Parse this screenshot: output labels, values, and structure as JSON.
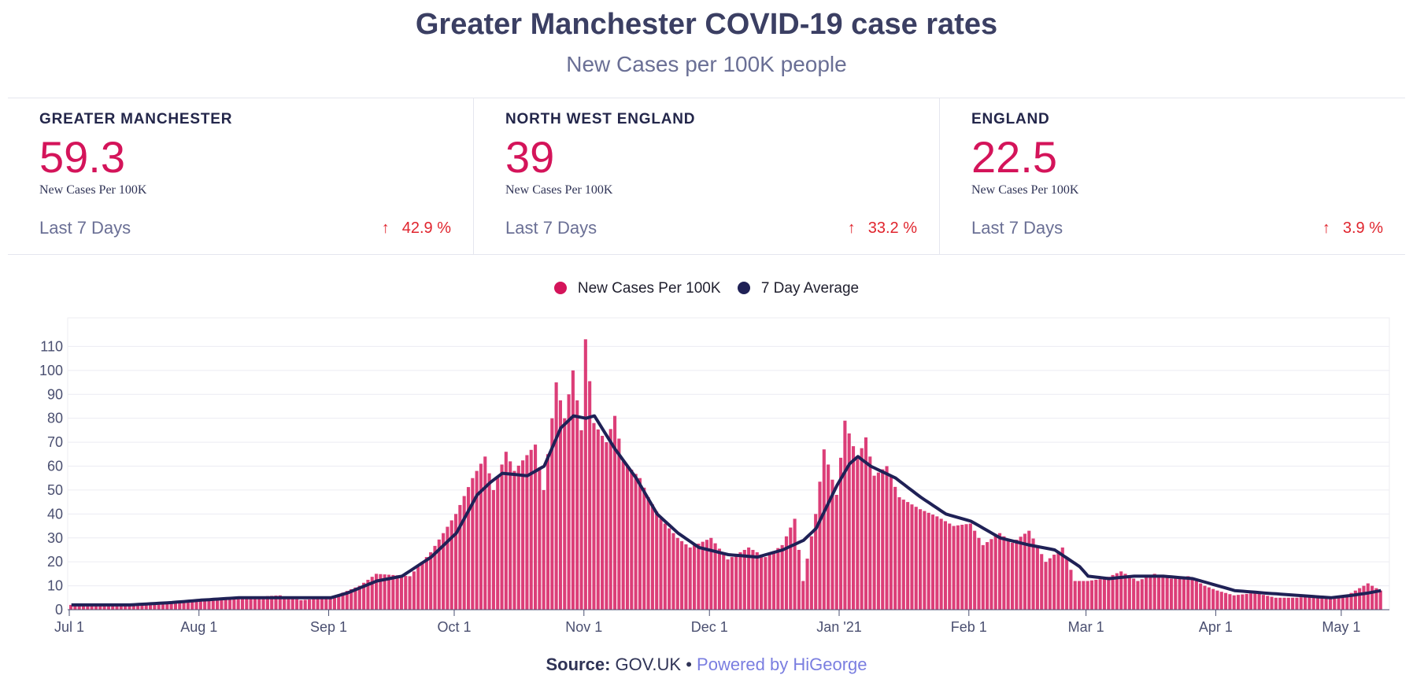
{
  "title": "Greater Manchester COVID-19 case rates",
  "subtitle": "New Cases per 100K people",
  "cards": [
    {
      "region": "GREATER MANCHESTER",
      "value": "59.3",
      "unit": "New Cases Per 100K",
      "period": "Last 7 Days",
      "change": "42.9 %",
      "direction": "up"
    },
    {
      "region": "NORTH WEST ENGLAND",
      "value": "39",
      "unit": "New Cases Per 100K",
      "period": "Last 7 Days",
      "change": "33.2 %",
      "direction": "up"
    },
    {
      "region": "ENGLAND",
      "value": "22.5",
      "unit": "New Cases Per 100K",
      "period": "Last 7 Days",
      "change": "3.9 %",
      "direction": "up"
    }
  ],
  "legend": [
    {
      "label": "New Cases Per 100K",
      "color": "#d4145a"
    },
    {
      "label": "7 Day Average",
      "color": "#1f2156"
    }
  ],
  "footer": {
    "source_label": "Source:",
    "source": "GOV.UK",
    "separator": "•",
    "powered": "Powered by HiGeorge"
  },
  "chart_data": {
    "type": "bar",
    "x_start": "2020-07-01",
    "x_end": "2021-05-10",
    "y_ticks": [
      0,
      10,
      20,
      30,
      40,
      50,
      60,
      70,
      80,
      90,
      100,
      110
    ],
    "ylim": [
      0,
      120
    ],
    "x_ticks": [
      {
        "label": "Jul 1",
        "date": "2020-07-01"
      },
      {
        "label": "Aug 1",
        "date": "2020-08-01"
      },
      {
        "label": "Sep 1",
        "date": "2020-09-01"
      },
      {
        "label": "Oct 1",
        "date": "2020-10-01"
      },
      {
        "label": "Nov 1",
        "date": "2020-11-01"
      },
      {
        "label": "Dec 1",
        "date": "2020-12-01"
      },
      {
        "label": "Jan '21",
        "date": "2021-01-01"
      },
      {
        "label": "Feb 1",
        "date": "2021-02-01"
      },
      {
        "label": "Mar 1",
        "date": "2021-03-01"
      },
      {
        "label": "Apr 1",
        "date": "2021-04-01"
      },
      {
        "label": "May 1",
        "date": "2021-05-01"
      }
    ],
    "bar_color": "#d4145a",
    "line_color": "#1f2156",
    "daily_anchors": [
      [
        "2020-07-01",
        2
      ],
      [
        "2020-07-15",
        2
      ],
      [
        "2020-07-25",
        3
      ],
      [
        "2020-08-01",
        4
      ],
      [
        "2020-08-10",
        5
      ],
      [
        "2020-08-20",
        6
      ],
      [
        "2020-08-25",
        4
      ],
      [
        "2020-09-01",
        5
      ],
      [
        "2020-09-08",
        10
      ],
      [
        "2020-09-12",
        15
      ],
      [
        "2020-09-20",
        14
      ],
      [
        "2020-09-25",
        24
      ],
      [
        "2020-10-01",
        40
      ],
      [
        "2020-10-05",
        55
      ],
      [
        "2020-10-08",
        64
      ],
      [
        "2020-10-10",
        50
      ],
      [
        "2020-10-13",
        66
      ],
      [
        "2020-10-15",
        58
      ],
      [
        "2020-10-20",
        69
      ],
      [
        "2020-10-22",
        50
      ],
      [
        "2020-10-25",
        95
      ],
      [
        "2020-10-27",
        80
      ],
      [
        "2020-10-29",
        100
      ],
      [
        "2020-10-31",
        75
      ],
      [
        "2020-11-01",
        113
      ],
      [
        "2020-11-03",
        78
      ],
      [
        "2020-11-06",
        70
      ],
      [
        "2020-11-08",
        81
      ],
      [
        "2020-11-10",
        62
      ],
      [
        "2020-11-14",
        55
      ],
      [
        "2020-11-16",
        47
      ],
      [
        "2020-11-19",
        38
      ],
      [
        "2020-11-23",
        30
      ],
      [
        "2020-11-26",
        26
      ],
      [
        "2020-12-01",
        30
      ],
      [
        "2020-12-05",
        21
      ],
      [
        "2020-12-10",
        26
      ],
      [
        "2020-12-14",
        22
      ],
      [
        "2020-12-18",
        27
      ],
      [
        "2020-12-21",
        38
      ],
      [
        "2020-12-23",
        12
      ],
      [
        "2020-12-26",
        40
      ],
      [
        "2020-12-28",
        67
      ],
      [
        "2020-12-31",
        48
      ],
      [
        "2021-01-02",
        79
      ],
      [
        "2021-01-05",
        63
      ],
      [
        "2021-01-07",
        72
      ],
      [
        "2021-01-09",
        56
      ],
      [
        "2021-01-12",
        60
      ],
      [
        "2021-01-15",
        47
      ],
      [
        "2021-01-20",
        42
      ],
      [
        "2021-01-24",
        39
      ],
      [
        "2021-01-28",
        35
      ],
      [
        "2021-02-01",
        36
      ],
      [
        "2021-02-04",
        27
      ],
      [
        "2021-02-08",
        32
      ],
      [
        "2021-02-11",
        28
      ],
      [
        "2021-02-15",
        33
      ],
      [
        "2021-02-19",
        20
      ],
      [
        "2021-02-23",
        26
      ],
      [
        "2021-02-26",
        12
      ],
      [
        "2021-03-01",
        12
      ],
      [
        "2021-03-05",
        13
      ],
      [
        "2021-03-09",
        16
      ],
      [
        "2021-03-13",
        12
      ],
      [
        "2021-03-17",
        15
      ],
      [
        "2021-03-21",
        13
      ],
      [
        "2021-03-25",
        14
      ],
      [
        "2021-03-29",
        10
      ],
      [
        "2021-04-01",
        8
      ],
      [
        "2021-04-05",
        6
      ],
      [
        "2021-04-10",
        7
      ],
      [
        "2021-04-15",
        5
      ],
      [
        "2021-04-20",
        5
      ],
      [
        "2021-04-25",
        6
      ],
      [
        "2021-05-01",
        5
      ],
      [
        "2021-05-04",
        8
      ],
      [
        "2021-05-07",
        11
      ],
      [
        "2021-05-10",
        8
      ]
    ],
    "average_anchors": [
      [
        "2020-07-01",
        2
      ],
      [
        "2020-07-15",
        2
      ],
      [
        "2020-07-25",
        3
      ],
      [
        "2020-08-01",
        4
      ],
      [
        "2020-08-10",
        5
      ],
      [
        "2020-08-20",
        5
      ],
      [
        "2020-09-01",
        5
      ],
      [
        "2020-09-05",
        7
      ],
      [
        "2020-09-12",
        12
      ],
      [
        "2020-09-18",
        14
      ],
      [
        "2020-09-25",
        22
      ],
      [
        "2020-10-01",
        32
      ],
      [
        "2020-10-06",
        48
      ],
      [
        "2020-10-09",
        53
      ],
      [
        "2020-10-12",
        57
      ],
      [
        "2020-10-18",
        56
      ],
      [
        "2020-10-22",
        60
      ],
      [
        "2020-10-26",
        76
      ],
      [
        "2020-10-29",
        81
      ],
      [
        "2020-11-01",
        80
      ],
      [
        "2020-11-03",
        81
      ],
      [
        "2020-11-08",
        67
      ],
      [
        "2020-11-13",
        55
      ],
      [
        "2020-11-18",
        40
      ],
      [
        "2020-11-23",
        32
      ],
      [
        "2020-11-28",
        26
      ],
      [
        "2020-12-05",
        23
      ],
      [
        "2020-12-12",
        22
      ],
      [
        "2020-12-18",
        25
      ],
      [
        "2020-12-23",
        29
      ],
      [
        "2020-12-26",
        34
      ],
      [
        "2020-12-31",
        52
      ],
      [
        "2021-01-03",
        61
      ],
      [
        "2021-01-05",
        64
      ],
      [
        "2021-01-08",
        60
      ],
      [
        "2021-01-14",
        55
      ],
      [
        "2021-01-20",
        47
      ],
      [
        "2021-01-26",
        40
      ],
      [
        "2021-02-01",
        37
      ],
      [
        "2021-02-08",
        30
      ],
      [
        "2021-02-15",
        27
      ],
      [
        "2021-02-21",
        25
      ],
      [
        "2021-02-27",
        18
      ],
      [
        "2021-03-01",
        14
      ],
      [
        "2021-03-06",
        13
      ],
      [
        "2021-03-12",
        14
      ],
      [
        "2021-03-19",
        14
      ],
      [
        "2021-03-26",
        13
      ],
      [
        "2021-04-01",
        10
      ],
      [
        "2021-04-05",
        8
      ],
      [
        "2021-04-12",
        7
      ],
      [
        "2021-04-20",
        6
      ],
      [
        "2021-04-28",
        5
      ],
      [
        "2021-05-03",
        6
      ],
      [
        "2021-05-07",
        7
      ],
      [
        "2021-05-10",
        8
      ]
    ]
  }
}
